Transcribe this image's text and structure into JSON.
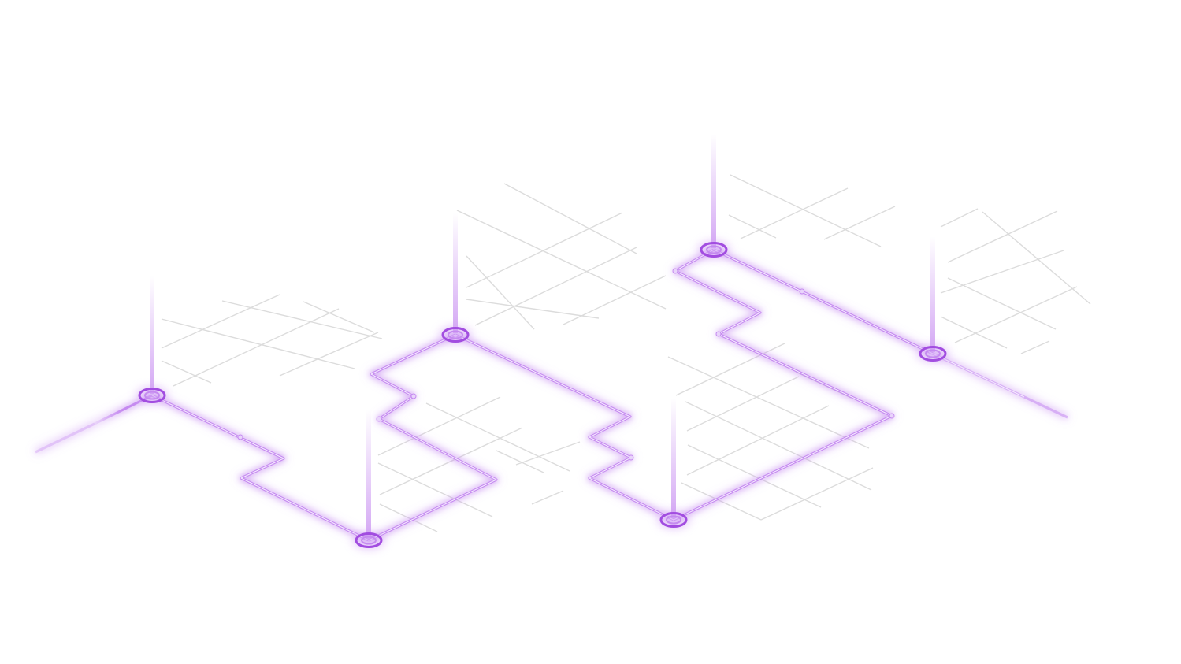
{
  "colors": {
    "background": "#ffffff",
    "grid": "#dcdcdc",
    "route": "#c58af0",
    "route_core": "#f3e6ff",
    "node": "#a24de0",
    "node_glow": "#d3a4f5"
  },
  "diagram": {
    "style": "isometric-network",
    "node_count": 7,
    "grid_patch_count": 7
  }
}
